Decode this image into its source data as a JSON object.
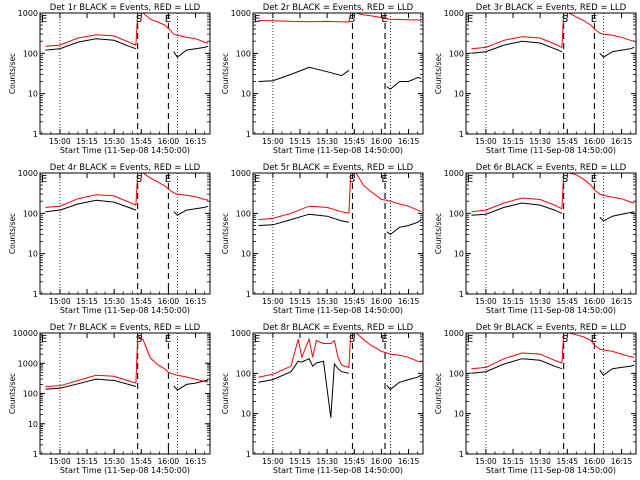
{
  "figure": {
    "ylabel": "Counts/sec",
    "xlabel": "Start Time (11-Sep-08 14:50:00)",
    "x_ticks": [
      "15:00",
      "15:15",
      "15:30",
      "15:45",
      "16:00",
      "16:15"
    ],
    "marker_S": "S",
    "marker_E": "E",
    "colors": {
      "events": "#000000",
      "lld": "#ff0000",
      "background": "#ffffff"
    }
  },
  "chart_data": [
    {
      "type": "line",
      "title": "Det 1r BLACK = Events, RED = LLD",
      "xlabel": "Start Time (11-Sep-08 14:50:00)",
      "ylabel": "Counts/sec",
      "ylim": [
        1,
        1000
      ],
      "yticks": [
        1,
        10,
        100,
        1000
      ],
      "log_y": true,
      "xticks": [
        "15:00",
        "15:15",
        "15:30",
        "15:45",
        "16:00",
        "16:15"
      ],
      "dotted_x": [
        "15:00",
        "16:05"
      ],
      "dashed_x": [
        "15:43",
        "16:00"
      ],
      "label_S_x": "15:42",
      "label_E_x": "15:58",
      "x": [
        "14:52",
        "15:00",
        "15:10",
        "15:20",
        "15:30",
        "15:38",
        "15:42",
        "15:43",
        "15:46",
        "15:50",
        "15:54",
        "15:58",
        "16:00",
        "16:03",
        "16:05",
        "16:10",
        "16:15",
        "16:20",
        "16:22"
      ],
      "series": [
        {
          "name": "BLACK = Events",
          "values": [
            120,
            130,
            190,
            230,
            210,
            150,
            130,
            null,
            null,
            null,
            null,
            null,
            null,
            110,
            80,
            120,
            130,
            140,
            150
          ]
        },
        {
          "name": "RED = LLD",
          "values": [
            150,
            160,
            240,
            290,
            270,
            190,
            160,
            1000,
            1000,
            700,
            600,
            500,
            420,
            300,
            280,
            250,
            230,
            190,
            180
          ]
        }
      ]
    },
    {
      "type": "line",
      "title": "Det 2r BLACK = Events, RED = LLD",
      "xlabel": "Start Time (11-Sep-08 14:50:00)",
      "ylabel": "Counts/sec",
      "ylim": [
        1,
        1000
      ],
      "yticks": [
        1,
        10,
        100,
        1000
      ],
      "log_y": true,
      "xticks": [
        "15:00",
        "15:15",
        "15:30",
        "15:45",
        "16:00",
        "16:15"
      ],
      "dotted_x": [
        "15:00",
        "16:05"
      ],
      "dashed_x": [
        "15:44",
        "16:02"
      ],
      "label_S_x": "15:42",
      "label_E_x": "16:00",
      "x": [
        "14:52",
        "15:00",
        "15:10",
        "15:20",
        "15:30",
        "15:38",
        "15:42",
        "15:43",
        "15:46",
        "15:50",
        "15:54",
        "15:58",
        "16:00",
        "16:03",
        "16:05",
        "16:10",
        "16:15",
        "16:20",
        "16:22"
      ],
      "series": [
        {
          "name": "BLACK = Events",
          "values": [
            20,
            21,
            30,
            45,
            35,
            28,
            38,
            null,
            null,
            null,
            null,
            null,
            null,
            15,
            13,
            20,
            20,
            25,
            24
          ]
        },
        {
          "name": "RED = LLD",
          "values": [
            650,
            640,
            620,
            610,
            620,
            600,
            600,
            1000,
            1000,
            900,
            850,
            800,
            760,
            720,
            700,
            690,
            680,
            670,
            660
          ]
        }
      ]
    },
    {
      "type": "line",
      "title": "Det 3r BLACK = Events, RED = LLD",
      "xlabel": "Start Time (11-Sep-08 14:50:00)",
      "ylabel": "Counts/sec",
      "ylim": [
        1,
        1000
      ],
      "yticks": [
        1,
        10,
        100,
        1000
      ],
      "log_y": true,
      "xticks": [
        "15:00",
        "15:15",
        "15:30",
        "15:45",
        "16:00",
        "16:15"
      ],
      "dotted_x": [
        "15:00",
        "16:05"
      ],
      "dashed_x": [
        "15:43",
        "16:00"
      ],
      "label_S_x": "15:42",
      "label_E_x": "15:58",
      "x": [
        "14:52",
        "15:00",
        "15:10",
        "15:20",
        "15:30",
        "15:38",
        "15:42",
        "15:43",
        "15:46",
        "15:50",
        "15:54",
        "15:58",
        "16:00",
        "16:03",
        "16:05",
        "16:10",
        "16:15",
        "16:20",
        "16:22"
      ],
      "series": [
        {
          "name": "BLACK = Events",
          "values": [
            100,
            110,
            160,
            200,
            180,
            130,
            110,
            null,
            null,
            null,
            null,
            null,
            null,
            100,
            80,
            110,
            120,
            130,
            140
          ]
        },
        {
          "name": "RED = LLD",
          "values": [
            130,
            140,
            210,
            260,
            240,
            170,
            140,
            1000,
            1000,
            800,
            650,
            500,
            400,
            320,
            300,
            280,
            250,
            210,
            200
          ]
        }
      ]
    },
    {
      "type": "line",
      "title": "Det 4r BLACK = Events, RED = LLD",
      "xlabel": "Start Time (11-Sep-08 14:50:00)",
      "ylabel": "Counts/sec",
      "ylim": [
        1,
        1000
      ],
      "yticks": [
        1,
        10,
        100,
        1000
      ],
      "log_y": true,
      "xticks": [
        "15:00",
        "15:15",
        "15:30",
        "15:45",
        "16:00",
        "16:15"
      ],
      "dotted_x": [
        "15:00",
        "16:05"
      ],
      "dashed_x": [
        "15:43",
        "16:00"
      ],
      "label_S_x": "15:42",
      "label_E_x": "15:58",
      "x": [
        "14:52",
        "15:00",
        "15:10",
        "15:20",
        "15:30",
        "15:38",
        "15:42",
        "15:43",
        "15:46",
        "15:50",
        "15:54",
        "15:58",
        "16:00",
        "16:03",
        "16:05",
        "16:10",
        "16:15",
        "16:20",
        "16:22"
      ],
      "series": [
        {
          "name": "BLACK = Events",
          "values": [
            110,
            120,
            170,
            210,
            190,
            140,
            120,
            null,
            null,
            null,
            null,
            null,
            null,
            110,
            90,
            120,
            130,
            140,
            150
          ]
        },
        {
          "name": "RED = LLD",
          "values": [
            140,
            150,
            230,
            290,
            270,
            190,
            160,
            1000,
            1000,
            750,
            600,
            480,
            400,
            320,
            300,
            280,
            260,
            220,
            210
          ]
        }
      ]
    },
    {
      "type": "line",
      "title": "Det 5r BLACK = Events, RED = LLD",
      "xlabel": "Start Time (11-Sep-08 14:50:00)",
      "ylabel": "Counts/sec",
      "ylim": [
        1,
        1000
      ],
      "yticks": [
        1,
        10,
        100,
        1000
      ],
      "log_y": true,
      "xticks": [
        "15:00",
        "15:15",
        "15:30",
        "15:45",
        "16:00",
        "16:15"
      ],
      "dotted_x": [
        "15:00",
        "16:05"
      ],
      "dashed_x": [
        "15:44",
        "16:02"
      ],
      "label_S_x": "15:42",
      "label_E_x": "16:00",
      "x": [
        "14:52",
        "15:00",
        "15:10",
        "15:20",
        "15:30",
        "15:38",
        "15:42",
        "15:43",
        "15:46",
        "15:50",
        "15:54",
        "15:58",
        "16:00",
        "16:03",
        "16:05",
        "16:10",
        "16:15",
        "16:20",
        "16:22"
      ],
      "series": [
        {
          "name": "BLACK = Events",
          "values": [
            50,
            52,
            70,
            95,
            85,
            65,
            60,
            null,
            null,
            null,
            null,
            null,
            null,
            35,
            30,
            45,
            50,
            60,
            70
          ]
        },
        {
          "name": "RED = LLD",
          "values": [
            70,
            75,
            100,
            150,
            140,
            110,
            100,
            1000,
            1000,
            500,
            350,
            260,
            220,
            210,
            200,
            170,
            150,
            120,
            110
          ]
        }
      ]
    },
    {
      "type": "line",
      "title": "Det 6r BLACK = Events, RED = LLD",
      "xlabel": "Start Time (11-Sep-08 14:50:00)",
      "ylabel": "Counts/sec",
      "ylim": [
        1,
        1000
      ],
      "yticks": [
        1,
        10,
        100,
        1000
      ],
      "log_y": true,
      "xticks": [
        "15:00",
        "15:15",
        "15:30",
        "15:45",
        "16:00",
        "16:15"
      ],
      "dotted_x": [
        "15:00",
        "16:05"
      ],
      "dashed_x": [
        "15:43",
        "16:00"
      ],
      "label_S_x": "15:42",
      "label_E_x": "15:58",
      "x": [
        "14:52",
        "15:00",
        "15:10",
        "15:20",
        "15:30",
        "15:38",
        "15:42",
        "15:43",
        "15:46",
        "15:50",
        "15:54",
        "15:58",
        "16:00",
        "16:03",
        "16:05",
        "16:10",
        "16:15",
        "16:20",
        "16:22"
      ],
      "series": [
        {
          "name": "BLACK = Events",
          "values": [
            90,
            95,
            140,
            180,
            160,
            120,
            100,
            null,
            null,
            null,
            null,
            null,
            null,
            80,
            65,
            85,
            95,
            105,
            110
          ]
        },
        {
          "name": "RED = LLD",
          "values": [
            110,
            120,
            180,
            240,
            220,
            160,
            130,
            1000,
            1000,
            900,
            700,
            500,
            380,
            300,
            280,
            250,
            230,
            190,
            180
          ]
        }
      ]
    },
    {
      "type": "line",
      "title": "Det 7r BLACK = Events, RED = LLD",
      "xlabel": "Start Time (11-Sep-08 14:50:00)",
      "ylabel": "Counts/sec",
      "ylim": [
        1,
        10000
      ],
      "yticks": [
        1,
        10,
        100,
        1000,
        10000
      ],
      "log_y": true,
      "xticks": [
        "15:00",
        "15:15",
        "15:30",
        "15:45",
        "16:00",
        "16:15"
      ],
      "dotted_x": [
        "15:00",
        "16:05"
      ],
      "dashed_x": [
        "15:43",
        "16:00"
      ],
      "label_S_x": "15:42",
      "label_E_x": "15:58",
      "x": [
        "14:52",
        "15:00",
        "15:10",
        "15:20",
        "15:30",
        "15:38",
        "15:42",
        "15:43",
        "15:46",
        "15:50",
        "15:54",
        "15:58",
        "16:00",
        "16:03",
        "16:05",
        "16:10",
        "16:15",
        "16:20",
        "16:22"
      ],
      "series": [
        {
          "name": "BLACK = Events",
          "values": [
            140,
            150,
            210,
            300,
            270,
            200,
            170,
            null,
            null,
            null,
            null,
            null,
            null,
            180,
            130,
            200,
            220,
            260,
            280
          ]
        },
        {
          "name": "RED = LLD",
          "values": [
            170,
            180,
            270,
            400,
            370,
            260,
            220,
            8000,
            6000,
            1500,
            900,
            650,
            500,
            430,
            400,
            350,
            300,
            250,
            240
          ]
        }
      ]
    },
    {
      "type": "line",
      "title": "Det 8r BLACK = Events, RED = LLD",
      "xlabel": "Start Time (11-Sep-08 14:50:00)",
      "ylabel": "Counts/sec",
      "ylim": [
        1,
        1000
      ],
      "yticks": [
        1,
        10,
        100,
        1000
      ],
      "log_y": true,
      "xticks": [
        "15:00",
        "15:15",
        "15:30",
        "15:45",
        "16:00",
        "16:15"
      ],
      "dotted_x": [
        "15:00",
        "16:05"
      ],
      "dashed_x": [
        "15:44",
        "16:02"
      ],
      "label_S_x": "15:42",
      "label_E_x": "16:00",
      "x": [
        "14:52",
        "15:00",
        "15:10",
        "15:14",
        "15:16",
        "15:20",
        "15:22",
        "15:24",
        "15:28",
        "15:32",
        "15:34",
        "15:36",
        "15:38",
        "15:42",
        "15:43",
        "15:46",
        "15:50",
        "15:54",
        "15:58",
        "16:00",
        "16:03",
        "16:05",
        "16:10",
        "16:15",
        "16:20",
        "16:22"
      ],
      "series": [
        {
          "name": "BLACK = Events",
          "values": [
            60,
            70,
            110,
            200,
            190,
            230,
            150,
            180,
            200,
            8,
            170,
            130,
            110,
            100,
            null,
            null,
            null,
            null,
            null,
            null,
            50,
            40,
            60,
            70,
            80,
            90
          ]
        },
        {
          "name": "RED = LLD",
          "values": [
            80,
            95,
            150,
            700,
            250,
            700,
            250,
            650,
            550,
            550,
            650,
            250,
            160,
            140,
            1000,
            1000,
            700,
            500,
            400,
            350,
            320,
            300,
            280,
            250,
            200,
            190
          ]
        }
      ]
    },
    {
      "type": "line",
      "title": "Det 9r BLACK = Events, RED = LLD",
      "xlabel": "Start Time (11-Sep-08 14:50:00)",
      "ylabel": "Counts/sec",
      "ylim": [
        1,
        1000
      ],
      "yticks": [
        1,
        10,
        100,
        1000
      ],
      "log_y": true,
      "xticks": [
        "15:00",
        "15:15",
        "15:30",
        "15:45",
        "16:00",
        "16:15"
      ],
      "dotted_x": [
        "15:00",
        "16:05"
      ],
      "dashed_x": [
        "15:43",
        "16:00"
      ],
      "label_S_x": "15:42",
      "label_E_x": "15:58",
      "x": [
        "14:52",
        "15:00",
        "15:10",
        "15:20",
        "15:30",
        "15:38",
        "15:42",
        "15:43",
        "15:46",
        "15:50",
        "15:54",
        "15:58",
        "16:00",
        "16:03",
        "16:05",
        "16:10",
        "16:15",
        "16:20",
        "16:22"
      ],
      "series": [
        {
          "name": "BLACK = Events",
          "values": [
            100,
            110,
            170,
            230,
            210,
            150,
            130,
            null,
            null,
            null,
            null,
            null,
            null,
            120,
            90,
            130,
            140,
            150,
            160
          ]
        },
        {
          "name": "RED = LLD",
          "values": [
            130,
            140,
            230,
            320,
            300,
            210,
            180,
            1000,
            1000,
            900,
            800,
            650,
            500,
            400,
            380,
            350,
            300,
            260,
            250
          ]
        }
      ]
    }
  ]
}
